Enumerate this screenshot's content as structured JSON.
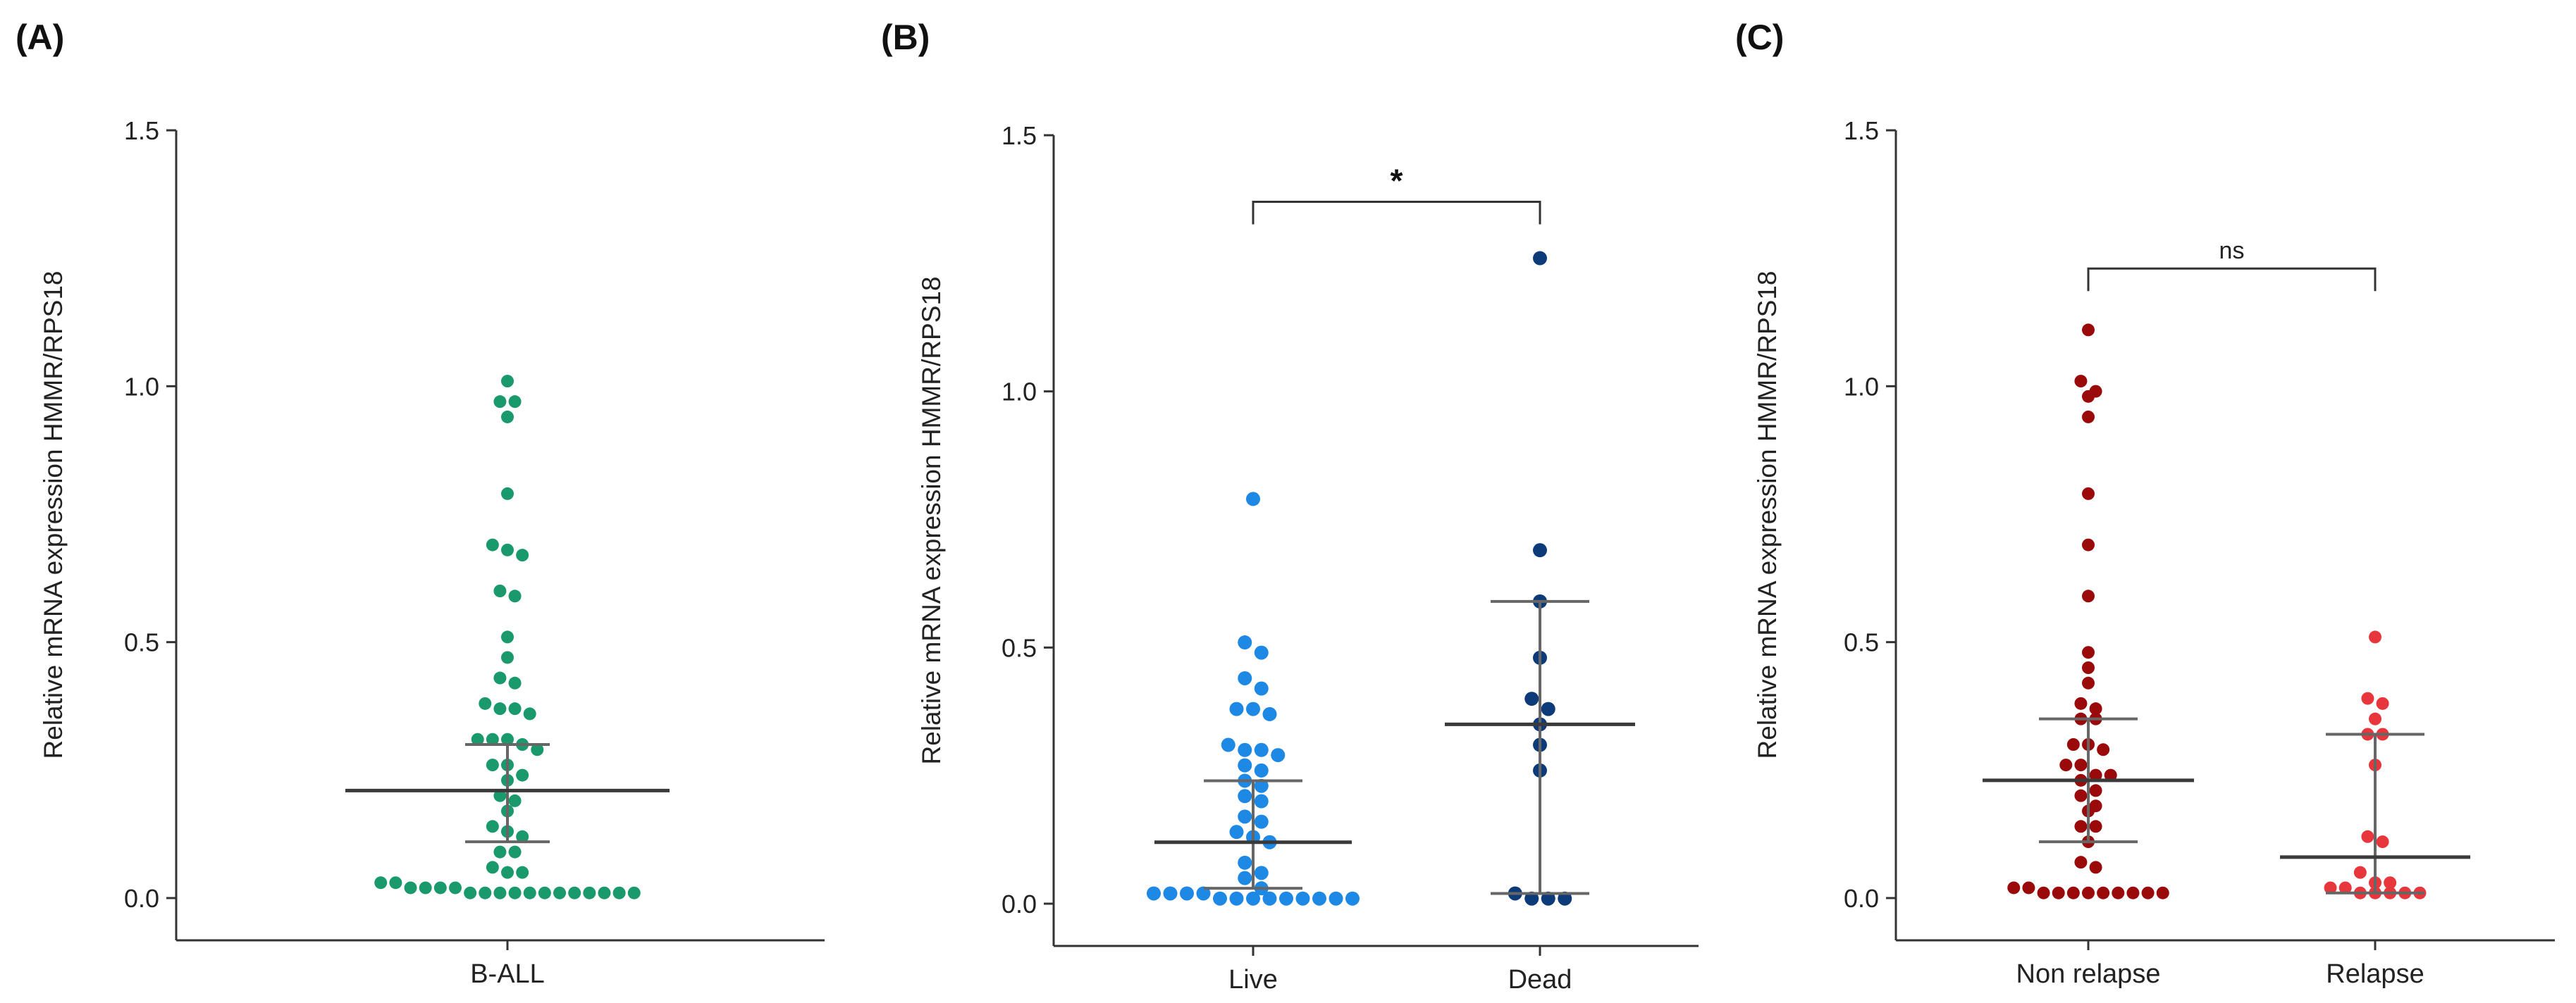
{
  "chart_data": [
    {
      "panel": "(A)",
      "type": "scatter",
      "ylabel": "Relative mRNA expression HMMR/RPS18",
      "ylim": [
        0,
        1.5
      ],
      "yticks": [
        "0.0",
        "0.5",
        "1.0",
        "1.5"
      ],
      "categories": [
        "B-ALL"
      ],
      "groups": [
        {
          "category": "B-ALL",
          "color": "#1a9a6c",
          "values": [
            1.01,
            0.97,
            0.97,
            0.94,
            0.79,
            0.69,
            0.68,
            0.67,
            0.6,
            0.59,
            0.51,
            0.47,
            0.43,
            0.42,
            0.38,
            0.37,
            0.37,
            0.36,
            0.31,
            0.31,
            0.31,
            0.3,
            0.29,
            0.26,
            0.26,
            0.24,
            0.23,
            0.2,
            0.19,
            0.17,
            0.14,
            0.13,
            0.12,
            0.09,
            0.09,
            0.06,
            0.05,
            0.05,
            0.03,
            0.03,
            0.02,
            0.02,
            0.01,
            0.01,
            0.01,
            0.01,
            0.01,
            0.01,
            0.01,
            0.01,
            0.01,
            0.01,
            0.01,
            0.01,
            0.02,
            0.02
          ],
          "median": 0.21,
          "q1": 0.11,
          "q3": 0.3
        }
      ]
    },
    {
      "panel": "(B)",
      "type": "scatter",
      "ylabel": "Relative mRNA expression HMMR/RPS18",
      "ylim": [
        0,
        1.5
      ],
      "yticks": [
        "0.0",
        "0.5",
        "1.0",
        "1.5"
      ],
      "categories": [
        "Live",
        "Dead"
      ],
      "groups": [
        {
          "category": "Live",
          "color": "#1e88e5",
          "values": [
            0.79,
            0.51,
            0.49,
            0.44,
            0.42,
            0.38,
            0.38,
            0.37,
            0.31,
            0.3,
            0.3,
            0.29,
            0.27,
            0.26,
            0.24,
            0.23,
            0.21,
            0.2,
            0.17,
            0.16,
            0.14,
            0.13,
            0.12,
            0.08,
            0.06,
            0.05,
            0.03,
            0.02,
            0.02,
            0.01,
            0.01,
            0.01,
            0.01,
            0.01,
            0.01,
            0.01,
            0.01,
            0.01,
            0.02,
            0.02
          ],
          "median": 0.12,
          "q1": 0.03,
          "q3": 0.24
        },
        {
          "category": "Dead",
          "color": "#0d3b7a",
          "values": [
            1.26,
            0.69,
            0.59,
            0.48,
            0.4,
            0.38,
            0.35,
            0.31,
            0.26,
            0.02,
            0.01,
            0.01,
            0.01
          ],
          "median": 0.35,
          "q1": 0.02,
          "q3": 0.59
        }
      ],
      "annotation": {
        "text": "*",
        "from": "Live",
        "to": "Dead",
        "y": 1.37
      }
    },
    {
      "panel": "(C)",
      "type": "scatter",
      "ylabel": "Relative mRNA expression HMMR/RPS18",
      "ylim": [
        0,
        1.5
      ],
      "yticks": [
        "0.0",
        "0.5",
        "1.0",
        "1.5"
      ],
      "categories": [
        "Non relapse",
        "Relapse"
      ],
      "groups": [
        {
          "category": "Non relapse",
          "color": "#9b0a0a",
          "values": [
            1.11,
            1.01,
            0.99,
            0.98,
            0.94,
            0.79,
            0.69,
            0.59,
            0.48,
            0.45,
            0.42,
            0.38,
            0.37,
            0.35,
            0.35,
            0.3,
            0.3,
            0.29,
            0.26,
            0.26,
            0.24,
            0.24,
            0.23,
            0.21,
            0.2,
            0.18,
            0.17,
            0.14,
            0.14,
            0.11,
            0.07,
            0.06,
            0.02,
            0.02,
            0.01,
            0.01,
            0.01,
            0.01,
            0.01,
            0.01,
            0.01,
            0.01,
            0.01
          ],
          "median": 0.23,
          "q1": 0.11,
          "q3": 0.35
        },
        {
          "category": "Relapse",
          "color": "#e8373c",
          "values": [
            0.51,
            0.39,
            0.38,
            0.35,
            0.32,
            0.32,
            0.26,
            0.12,
            0.11,
            0.05,
            0.03,
            0.03,
            0.02,
            0.02,
            0.01,
            0.01,
            0.01,
            0.01,
            0.01
          ],
          "median": 0.08,
          "q1": 0.01,
          "q3": 0.32
        }
      ],
      "annotation": {
        "text": "ns",
        "from": "Non relapse",
        "to": "Relapse",
        "y": 1.23
      }
    }
  ]
}
